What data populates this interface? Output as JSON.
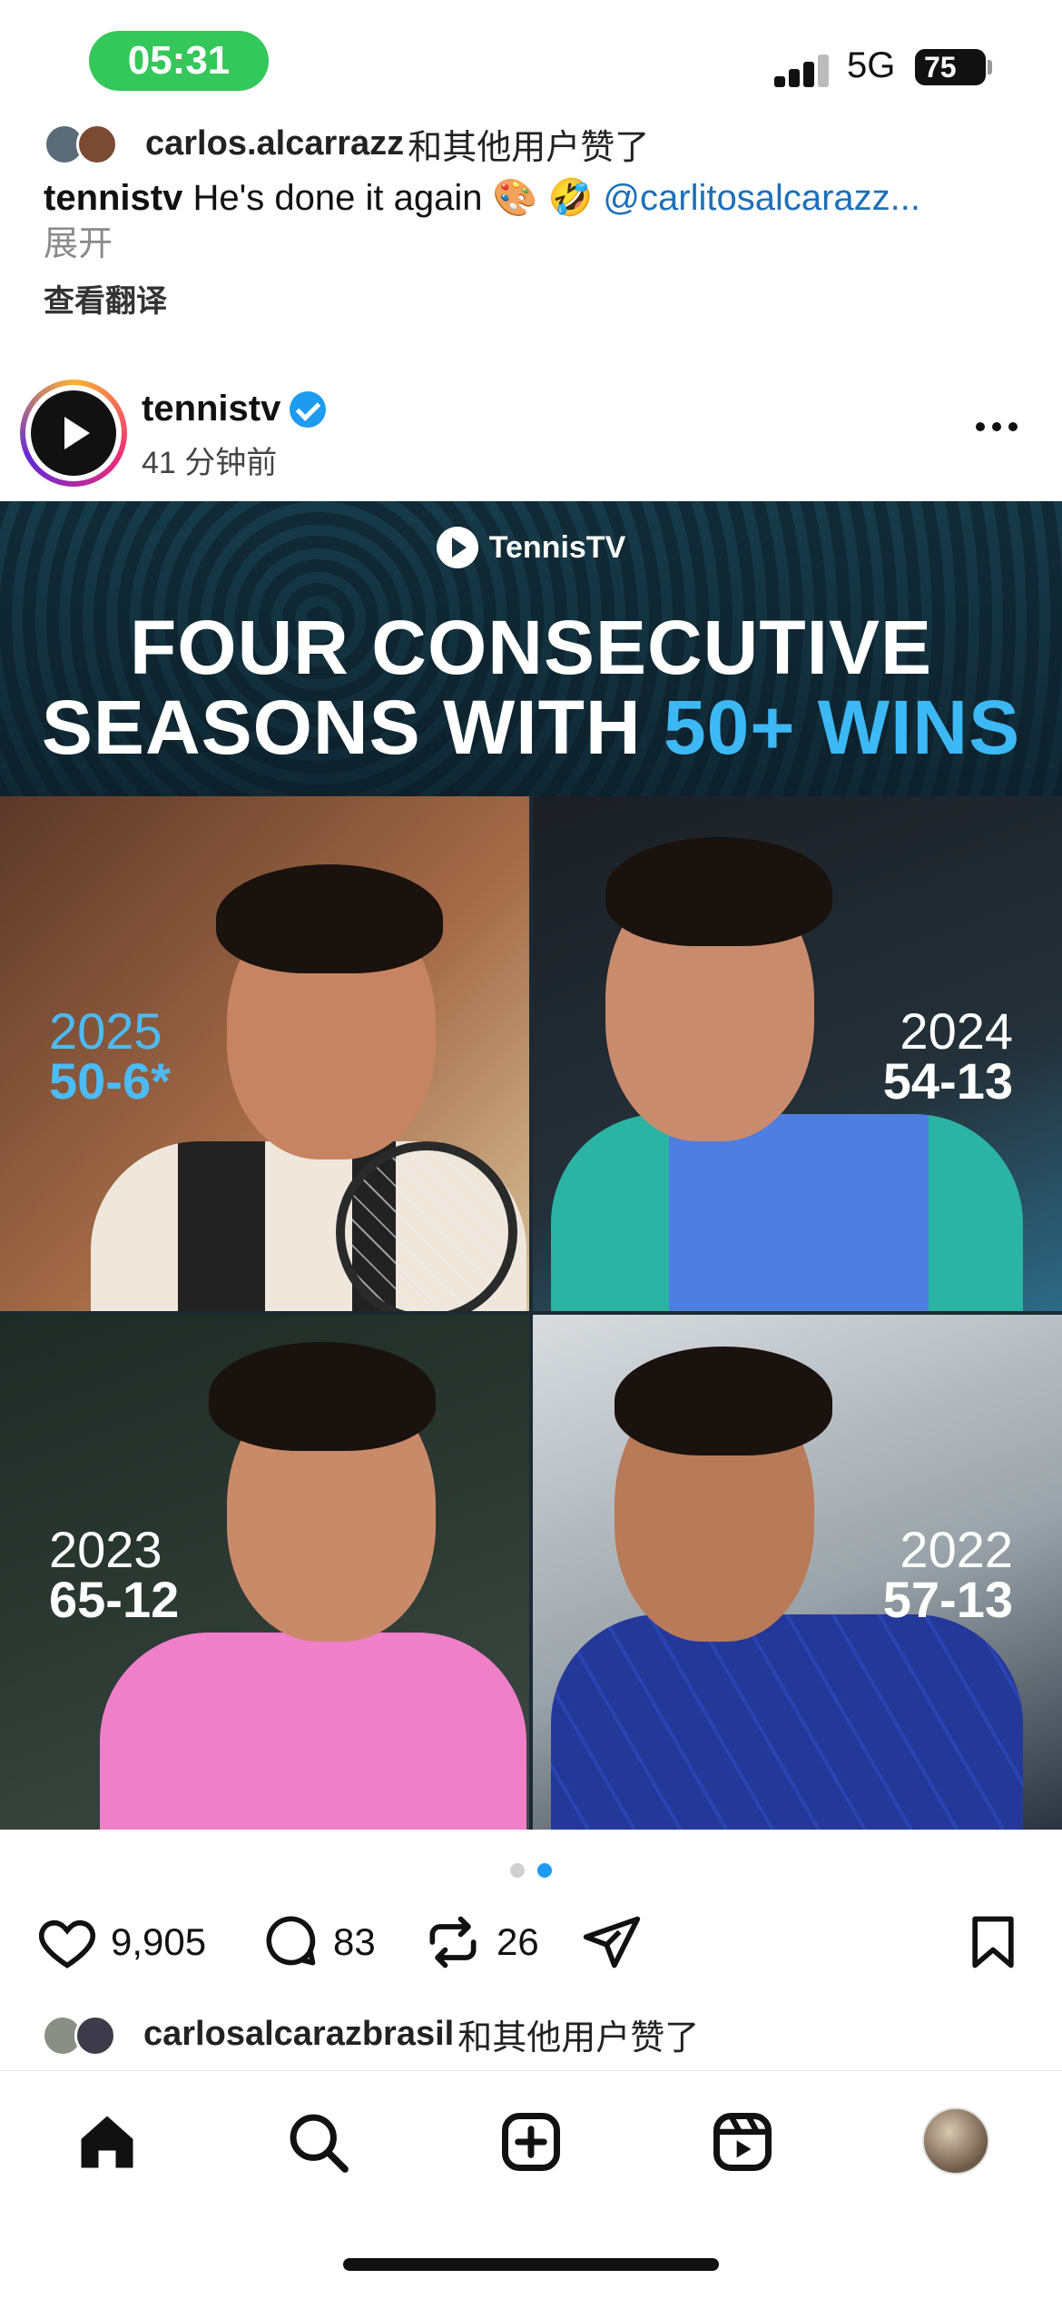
{
  "status_bar": {
    "time": "05:31",
    "network": "5G",
    "battery": "75"
  },
  "prev_post": {
    "liked_by_user": "carlos.alcarrazz",
    "liked_suffix": "和其他用户赞了",
    "caption_user": "tennistv",
    "caption_text": "He's done it again 🎨 🤣",
    "caption_mention": "@carlitosalcarazz...",
    "expand": "展开",
    "translate": "查看翻译"
  },
  "post": {
    "username": "tennistv",
    "time_ago": "41 分钟前",
    "image": {
      "brand": "TennisTV",
      "headline_line1": "FOUR CONSECUTIVE",
      "headline_line2_white": "SEASONS WITH",
      "headline_line2_accent": "50+ WINS",
      "panels": [
        {
          "year": "2025",
          "record": "50-6*"
        },
        {
          "year": "2024",
          "record": "54-13"
        },
        {
          "year": "2023",
          "record": "65-12"
        },
        {
          "year": "2022",
          "record": "57-13"
        }
      ]
    },
    "likes": "9,905",
    "comments": "83",
    "reposts": "26",
    "liked_by_user": "carlosalcarazbrasil",
    "liked_suffix": "和其他用户赞了"
  },
  "icons": {
    "like": "heart-icon",
    "comment": "comment-icon",
    "repost": "repost-icon",
    "share": "send-icon",
    "save": "bookmark-icon",
    "nav": [
      "home-icon",
      "search-icon",
      "create-icon",
      "reels-icon",
      "profile-avatar"
    ]
  },
  "colors": {
    "accent": "#1d9bf0",
    "time_pill": "#34c759",
    "headline_accent": "#3cb8f5"
  }
}
